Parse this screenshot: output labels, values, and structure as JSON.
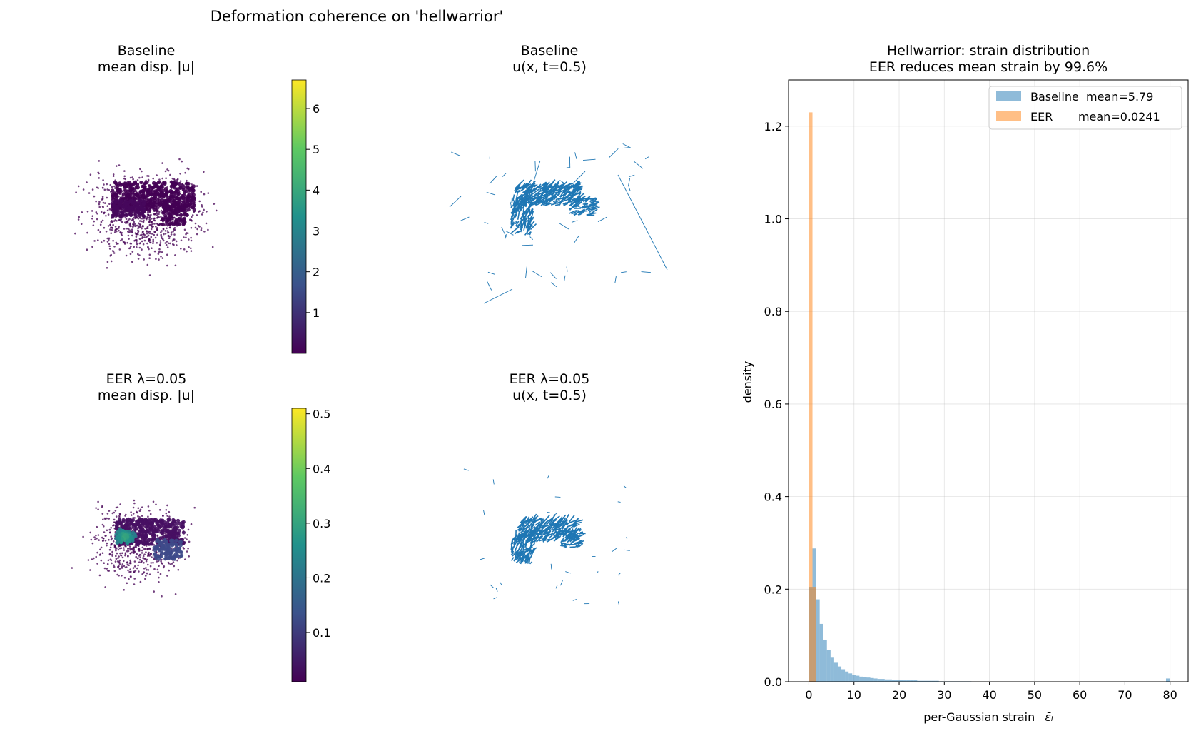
{
  "figure": {
    "suptitle": "Deformation coherence on 'hellwarrior'"
  },
  "panels": {
    "baseline_disp": {
      "title_line1": "Baseline",
      "title_line2": "mean disp. |u|"
    },
    "baseline_vec": {
      "title_line1": "Baseline",
      "title_line2": "u(x, t=0.5)"
    },
    "eer_disp": {
      "title_line1": "EER λ=0.05",
      "title_line2": "mean disp. |u|"
    },
    "eer_vec": {
      "title_line1": "EER λ=0.05",
      "title_line2": "u(x, t=0.5)"
    }
  },
  "colorbars": {
    "baseline": {
      "range": [
        0.0,
        6.7
      ],
      "ticks": [
        1,
        2,
        3,
        4,
        5,
        6
      ],
      "tick_labels": [
        "1",
        "2",
        "3",
        "4",
        "5",
        "6"
      ]
    },
    "eer": {
      "range": [
        0.01,
        0.51
      ],
      "ticks": [
        0.1,
        0.2,
        0.3,
        0.4,
        0.5
      ],
      "tick_labels": [
        "0.1",
        "0.2",
        "0.3",
        "0.4",
        "0.5"
      ]
    }
  },
  "colors": {
    "baseline": "#1f77b4",
    "eer": "#ff7f0e",
    "viridis": [
      "#440154",
      "#3b528b",
      "#21918c",
      "#5ec962",
      "#fde725"
    ]
  },
  "chart_data": {
    "type": "bar",
    "title_line1": "Hellwarrior: strain distribution",
    "title_line2": "EER reduces mean strain by 99.6%",
    "xlabel": "per-Gaussian strain",
    "xlabel_symbol": "ε̄ᵢ",
    "ylabel": "density",
    "xlim": [
      -4.5,
      84
    ],
    "ylim": [
      0,
      1.3
    ],
    "xticks": [
      0,
      10,
      20,
      30,
      40,
      50,
      60,
      70,
      80
    ],
    "yticks": [
      0.0,
      0.2,
      0.4,
      0.6,
      0.8,
      1.0,
      1.2
    ],
    "xtick_labels": [
      "0",
      "10",
      "20",
      "30",
      "40",
      "50",
      "60",
      "70",
      "80"
    ],
    "ytick_labels": [
      "0.0",
      "0.2",
      "0.4",
      "0.6",
      "0.8",
      "1.0",
      "1.2"
    ],
    "grid": true,
    "legend_position": "top-right",
    "series": [
      {
        "name": "Baseline",
        "legend_label": "Baseline  mean=5.79",
        "bin_width": 0.8,
        "bin_start": 0.0,
        "values": [
          0.205,
          0.288,
          0.178,
          0.125,
          0.091,
          0.068,
          0.052,
          0.041,
          0.033,
          0.027,
          0.022,
          0.018,
          0.015,
          0.013,
          0.011,
          0.01,
          0.009,
          0.008,
          0.007,
          0.006,
          0.006,
          0.005,
          0.005,
          0.004,
          0.004,
          0.004,
          0.003,
          0.003,
          0.003,
          0.003,
          0.002,
          0.002,
          0.002,
          0.002,
          0.002,
          0.002,
          0.001,
          0.001,
          0.001,
          0.001,
          0.001,
          0.001,
          0.001,
          0.001,
          0.001
        ]
      },
      {
        "name": "EER",
        "legend_label": "EER       mean=0.0241",
        "bin_width": 0.8,
        "bin_start": 0.0,
        "values": [
          1.23,
          0.205
        ]
      }
    ],
    "outlier_bar": {
      "series": "Baseline",
      "x": 79.5,
      "value": 0.007
    }
  }
}
